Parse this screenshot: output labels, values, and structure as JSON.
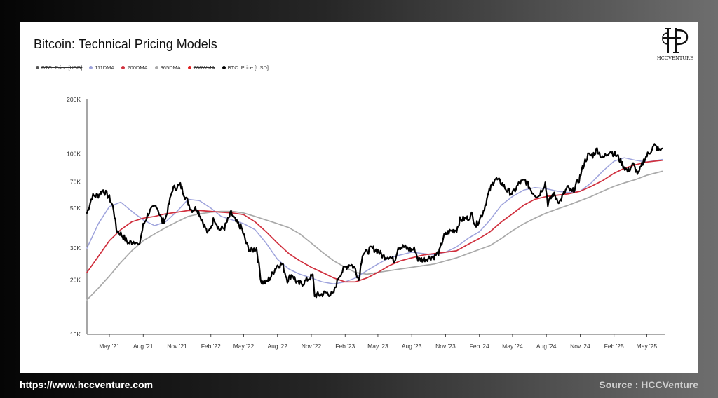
{
  "colors": {
    "btc": "#000000",
    "dma111": "#9ea3dc",
    "dma200": "#d0303e",
    "dma365": "#a9a9a9",
    "wma200": "#e02020"
  },
  "logo": {
    "text": "HCCVENTURE"
  },
  "footer": {
    "url": "https://www.hccventure.com",
    "source": "Source : HCCVenture"
  },
  "chart_data": {
    "type": "line",
    "title": "Bitcoin: Technical Pricing Models",
    "xlabel": "",
    "ylabel": "",
    "y_scale": "log",
    "ylim": [
      10000,
      200000
    ],
    "xlim": [
      "2021-03-01",
      "2025-06-15"
    ],
    "y_ticks": [
      {
        "value": 10000,
        "label": "10K"
      },
      {
        "value": 20000,
        "label": "20K"
      },
      {
        "value": 30000,
        "label": "30K"
      },
      {
        "value": 50000,
        "label": "50K"
      },
      {
        "value": 70000,
        "label": "70K"
      },
      {
        "value": 100000,
        "label": "100K"
      },
      {
        "value": 200000,
        "label": "200K"
      }
    ],
    "x_ticks": [
      {
        "date": "2021-05-01",
        "label": "May '21"
      },
      {
        "date": "2021-08-01",
        "label": "Aug '21"
      },
      {
        "date": "2021-11-01",
        "label": "Nov '21"
      },
      {
        "date": "2022-02-01",
        "label": "Feb '22"
      },
      {
        "date": "2022-05-01",
        "label": "May '22"
      },
      {
        "date": "2022-08-01",
        "label": "Aug '22"
      },
      {
        "date": "2022-11-01",
        "label": "Nov '22"
      },
      {
        "date": "2023-02-01",
        "label": "Feb '23"
      },
      {
        "date": "2023-05-01",
        "label": "May '23"
      },
      {
        "date": "2023-08-01",
        "label": "Aug '23"
      },
      {
        "date": "2023-11-01",
        "label": "Nov '23"
      },
      {
        "date": "2024-02-01",
        "label": "Feb '24"
      },
      {
        "date": "2024-05-01",
        "label": "May '24"
      },
      {
        "date": "2024-08-01",
        "label": "Aug '24"
      },
      {
        "date": "2024-11-01",
        "label": "Nov '24"
      },
      {
        "date": "2025-02-01",
        "label": "Feb '25"
      },
      {
        "date": "2025-05-01",
        "label": "May '25"
      }
    ],
    "legend": {
      "placement": "top-left",
      "entries": [
        {
          "label": "BTC: Price [USD]",
          "color": "#555555",
          "struck": true
        },
        {
          "label": "111DMA",
          "color": "#9ea3dc",
          "struck": false
        },
        {
          "label": "200DMA",
          "color": "#d0303e",
          "struck": false
        },
        {
          "label": "365DMA",
          "color": "#a9a9a9",
          "struck": false
        },
        {
          "label": "200WMA",
          "color": "#e02020",
          "struck": true
        },
        {
          "label": "BTC: Price [USD]",
          "color": "#000000",
          "struck": false
        }
      ]
    },
    "grid": false,
    "series": [
      {
        "key": "btc",
        "x": [
          "2021-03-01",
          "2021-03-15",
          "2021-04-01",
          "2021-04-14",
          "2021-05-01",
          "2021-05-12",
          "2021-05-20",
          "2021-06-01",
          "2021-06-22",
          "2021-07-10",
          "2021-07-20",
          "2021-08-01",
          "2021-08-15",
          "2021-09-06",
          "2021-09-22",
          "2021-10-01",
          "2021-10-20",
          "2021-11-10",
          "2021-11-25",
          "2021-12-10",
          "2021-12-25",
          "2022-01-10",
          "2022-01-24",
          "2022-02-10",
          "2022-02-24",
          "2022-03-10",
          "2022-03-28",
          "2022-04-10",
          "2022-04-25",
          "2022-05-10",
          "2022-05-20",
          "2022-06-05",
          "2022-06-18",
          "2022-07-01",
          "2022-07-15",
          "2022-07-30",
          "2022-08-14",
          "2022-08-28",
          "2022-09-10",
          "2022-09-25",
          "2022-10-10",
          "2022-10-26",
          "2022-11-05",
          "2022-11-10",
          "2022-11-25",
          "2022-12-10",
          "2022-12-30",
          "2023-01-15",
          "2023-02-01",
          "2023-02-16",
          "2023-03-01",
          "2023-03-10",
          "2023-03-20",
          "2023-04-01",
          "2023-04-14",
          "2023-05-01",
          "2023-05-15",
          "2023-06-01",
          "2023-06-15",
          "2023-06-25",
          "2023-07-10",
          "2023-07-25",
          "2023-08-10",
          "2023-08-18",
          "2023-09-01",
          "2023-09-15",
          "2023-10-01",
          "2023-10-15",
          "2023-10-26",
          "2023-11-10",
          "2023-12-01",
          "2023-12-10",
          "2024-01-01",
          "2024-01-11",
          "2024-01-23",
          "2024-02-10",
          "2024-02-28",
          "2024-03-14",
          "2024-04-01",
          "2024-04-15",
          "2024-05-01",
          "2024-05-20",
          "2024-06-05",
          "2024-06-25",
          "2024-07-10",
          "2024-07-29",
          "2024-08-05",
          "2024-08-20",
          "2024-09-06",
          "2024-09-27",
          "2024-10-10",
          "2024-10-29",
          "2024-11-12",
          "2024-11-22",
          "2024-12-05",
          "2024-12-17",
          "2025-01-01",
          "2025-01-20",
          "2025-02-10",
          "2025-02-28",
          "2025-03-10",
          "2025-03-25",
          "2025-04-08",
          "2025-04-25",
          "2025-05-10",
          "2025-05-22",
          "2025-06-05",
          "2025-06-12"
        ],
        "y": [
          47000,
          58000,
          59000,
          63000,
          57000,
          50000,
          38000,
          36000,
          32000,
          33000,
          30500,
          40000,
          47000,
          52000,
          42000,
          44000,
          64000,
          67000,
          57000,
          49000,
          50000,
          42000,
          36000,
          44000,
          38000,
          39000,
          47000,
          42000,
          39000,
          31000,
          29000,
          30000,
          19500,
          19300,
          21000,
          24000,
          24500,
          20000,
          21500,
          19000,
          19200,
          20500,
          21000,
          16500,
          16500,
          17000,
          16500,
          21000,
          23500,
          24500,
          23000,
          20000,
          28000,
          28500,
          30000,
          29000,
          27000,
          27000,
          25500,
          30500,
          30500,
          29500,
          29500,
          26000,
          26000,
          26500,
          27000,
          28500,
          34500,
          37000,
          38000,
          43000,
          44000,
          46000,
          40000,
          47000,
          62000,
          73000,
          69000,
          63000,
          60000,
          69000,
          71000,
          61000,
          58000,
          69000,
          53000,
          60000,
          54000,
          65000,
          61000,
          72000,
          89000,
          98000,
          98000,
          106000,
          94000,
          104000,
          97000,
          85000,
          80000,
          87000,
          77000,
          94000,
          103000,
          111000,
          104000,
          107000
        ]
      },
      {
        "key": "dma111",
        "x": [
          "2021-03-01",
          "2021-04-01",
          "2021-05-01",
          "2021-06-01",
          "2021-07-01",
          "2021-08-01",
          "2021-09-01",
          "2021-10-01",
          "2021-11-01",
          "2021-12-01",
          "2022-01-01",
          "2022-02-01",
          "2022-03-01",
          "2022-04-01",
          "2022-05-01",
          "2022-06-01",
          "2022-07-01",
          "2022-08-01",
          "2022-09-01",
          "2022-10-01",
          "2022-11-01",
          "2022-12-01",
          "2023-01-01",
          "2023-02-01",
          "2023-03-01",
          "2023-04-01",
          "2023-05-01",
          "2023-06-01",
          "2023-07-01",
          "2023-08-01",
          "2023-09-01",
          "2023-10-01",
          "2023-11-01",
          "2023-12-01",
          "2024-01-01",
          "2024-02-01",
          "2024-03-01",
          "2024-04-01",
          "2024-05-01",
          "2024-06-01",
          "2024-07-01",
          "2024-08-01",
          "2024-09-01",
          "2024-10-01",
          "2024-11-01",
          "2024-12-01",
          "2025-01-01",
          "2025-02-01",
          "2025-03-01",
          "2025-04-01",
          "2025-05-01",
          "2025-06-12"
        ],
        "y": [
          30000,
          41000,
          51000,
          54000,
          48000,
          43000,
          40000,
          42000,
          48000,
          56000,
          55000,
          50000,
          45000,
          43000,
          41000,
          38000,
          32000,
          26000,
          23000,
          21500,
          20500,
          19500,
          19000,
          19500,
          20500,
          22500,
          24500,
          26500,
          27500,
          28500,
          28000,
          27500,
          28500,
          30500,
          34000,
          37000,
          43000,
          52000,
          58000,
          63000,
          65000,
          64000,
          62000,
          61000,
          62000,
          69000,
          80000,
          91000,
          95000,
          92000,
          90000,
          93000
        ]
      },
      {
        "key": "dma200",
        "x": [
          "2021-03-01",
          "2021-04-01",
          "2021-05-01",
          "2021-06-01",
          "2021-07-01",
          "2021-08-01",
          "2021-09-01",
          "2021-10-01",
          "2021-11-01",
          "2021-12-01",
          "2022-01-01",
          "2022-02-01",
          "2022-03-01",
          "2022-04-01",
          "2022-05-01",
          "2022-06-01",
          "2022-07-01",
          "2022-08-01",
          "2022-09-01",
          "2022-10-01",
          "2022-11-01",
          "2022-12-01",
          "2023-01-01",
          "2023-02-01",
          "2023-03-01",
          "2023-04-01",
          "2023-05-01",
          "2023-06-01",
          "2023-07-01",
          "2023-08-01",
          "2023-09-01",
          "2023-10-01",
          "2023-11-01",
          "2023-12-01",
          "2024-01-01",
          "2024-02-01",
          "2024-03-01",
          "2024-04-01",
          "2024-05-01",
          "2024-06-01",
          "2024-07-01",
          "2024-08-01",
          "2024-09-01",
          "2024-10-01",
          "2024-11-01",
          "2024-12-01",
          "2025-01-01",
          "2025-02-01",
          "2025-03-01",
          "2025-04-01",
          "2025-05-01",
          "2025-06-12"
        ],
        "y": [
          22000,
          27000,
          33000,
          38000,
          42000,
          44000,
          45000,
          46500,
          47500,
          48500,
          48500,
          48000,
          47500,
          47000,
          46000,
          42000,
          37000,
          32000,
          28000,
          25500,
          23500,
          22000,
          20500,
          19500,
          19500,
          20500,
          22000,
          24000,
          25500,
          26500,
          27500,
          28000,
          28500,
          29000,
          31500,
          34000,
          37000,
          42000,
          46500,
          52000,
          56000,
          58000,
          59000,
          60000,
          62000,
          66000,
          71000,
          78000,
          83000,
          87000,
          90000,
          92000
        ]
      },
      {
        "key": "dma365",
        "x": [
          "2021-03-01",
          "2021-04-01",
          "2021-05-01",
          "2021-06-01",
          "2021-07-01",
          "2021-08-01",
          "2021-09-01",
          "2021-10-01",
          "2021-11-01",
          "2021-12-01",
          "2022-01-01",
          "2022-02-01",
          "2022-03-01",
          "2022-04-01",
          "2022-05-01",
          "2022-06-01",
          "2022-07-01",
          "2022-08-01",
          "2022-09-01",
          "2022-10-01",
          "2022-11-01",
          "2022-12-01",
          "2023-01-01",
          "2023-02-01",
          "2023-03-01",
          "2023-04-01",
          "2023-05-01",
          "2023-06-01",
          "2023-07-01",
          "2023-08-01",
          "2023-09-01",
          "2023-10-01",
          "2023-11-01",
          "2023-12-01",
          "2024-01-01",
          "2024-02-01",
          "2024-03-01",
          "2024-04-01",
          "2024-05-01",
          "2024-06-01",
          "2024-07-01",
          "2024-08-01",
          "2024-09-01",
          "2024-10-01",
          "2024-11-01",
          "2024-12-01",
          "2025-01-01",
          "2025-02-01",
          "2025-03-01",
          "2025-04-01",
          "2025-05-01",
          "2025-06-12"
        ],
        "y": [
          15500,
          18000,
          21000,
          25000,
          29000,
          33000,
          36000,
          39000,
          42000,
          45000,
          46500,
          47500,
          48000,
          48000,
          47000,
          45000,
          43000,
          41000,
          39000,
          36000,
          32000,
          28500,
          25500,
          23500,
          22000,
          21500,
          22000,
          22500,
          23000,
          23500,
          24000,
          24500,
          25500,
          26500,
          28000,
          29500,
          31000,
          34000,
          37500,
          41000,
          44000,
          47000,
          49500,
          52000,
          55000,
          58000,
          62000,
          66000,
          69000,
          72000,
          76000,
          80000
        ]
      }
    ]
  }
}
